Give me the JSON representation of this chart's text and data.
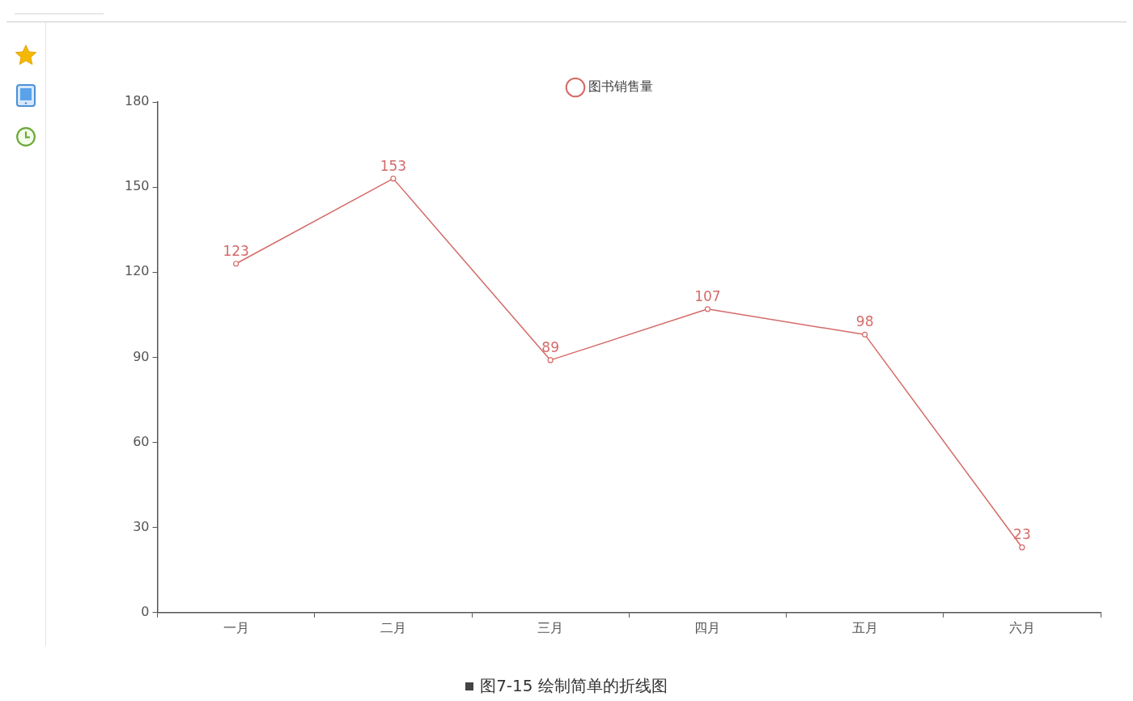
{
  "chart_data": {
    "type": "line",
    "categories": [
      "一月",
      "二月",
      "三月",
      "四月",
      "五月",
      "六月"
    ],
    "series": [
      {
        "name": "图书销售量",
        "color": "#d46b68",
        "values": [
          123,
          153,
          89,
          107,
          98,
          23
        ]
      }
    ],
    "ylim": [
      0,
      180
    ],
    "yticks": [
      0,
      30,
      60,
      90,
      120,
      150,
      180
    ],
    "grid": false,
    "legend": "top",
    "marker": "circle",
    "line_style": "solid",
    "data_labels": true,
    "annotations": [
      "图7-15  绘制简单的折线图"
    ]
  }
}
